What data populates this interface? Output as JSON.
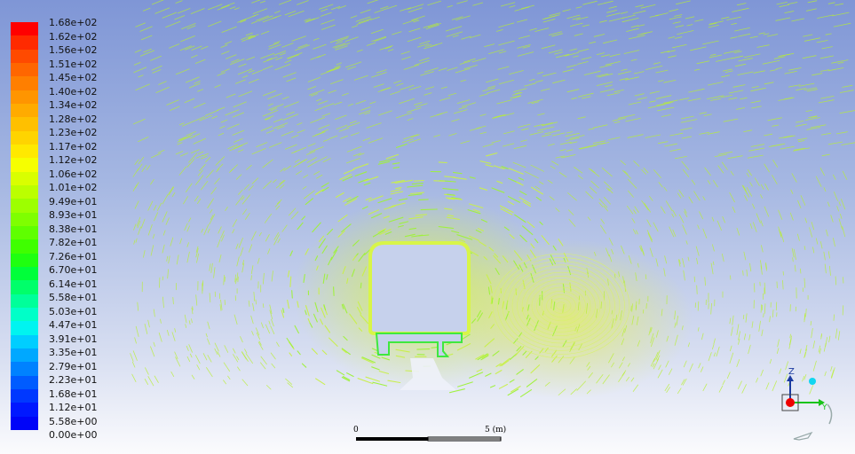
{
  "legend": {
    "labels": [
      "1.68e+02",
      "1.62e+02",
      "1.56e+02",
      "1.51e+02",
      "1.45e+02",
      "1.40e+02",
      "1.34e+02",
      "1.28e+02",
      "1.23e+02",
      "1.17e+02",
      "1.12e+02",
      "1.06e+02",
      "1.01e+02",
      "9.49e+01",
      "8.93e+01",
      "8.38e+01",
      "7.82e+01",
      "7.26e+01",
      "6.70e+01",
      "6.14e+01",
      "5.58e+01",
      "5.03e+01",
      "4.47e+01",
      "3.91e+01",
      "3.35e+01",
      "2.79e+01",
      "2.23e+01",
      "1.68e+01",
      "1.12e+01",
      "5.58e+00",
      "0.00e+00"
    ],
    "colors": [
      "#ff0000",
      "#ff2a00",
      "#ff4a00",
      "#ff6600",
      "#ff7f00",
      "#ff9500",
      "#ffab00",
      "#ffc000",
      "#ffd400",
      "#ffe900",
      "#f6ff00",
      "#d9ff00",
      "#bbff00",
      "#9dff00",
      "#7fff00",
      "#5fff00",
      "#3fff00",
      "#1fff10",
      "#00ff3a",
      "#00ff6a",
      "#00ff9a",
      "#00ffc8",
      "#00f4f0",
      "#00ceff",
      "#00a8ff",
      "#0082ff",
      "#005cff",
      "#0038ff",
      "#0018ff",
      "#0004f8",
      "#0000ff"
    ]
  },
  "scale_bar": {
    "start_label": "0",
    "end_label": "5 (m)"
  },
  "triad": {
    "z_label": "Z",
    "y_label": "Y"
  }
}
